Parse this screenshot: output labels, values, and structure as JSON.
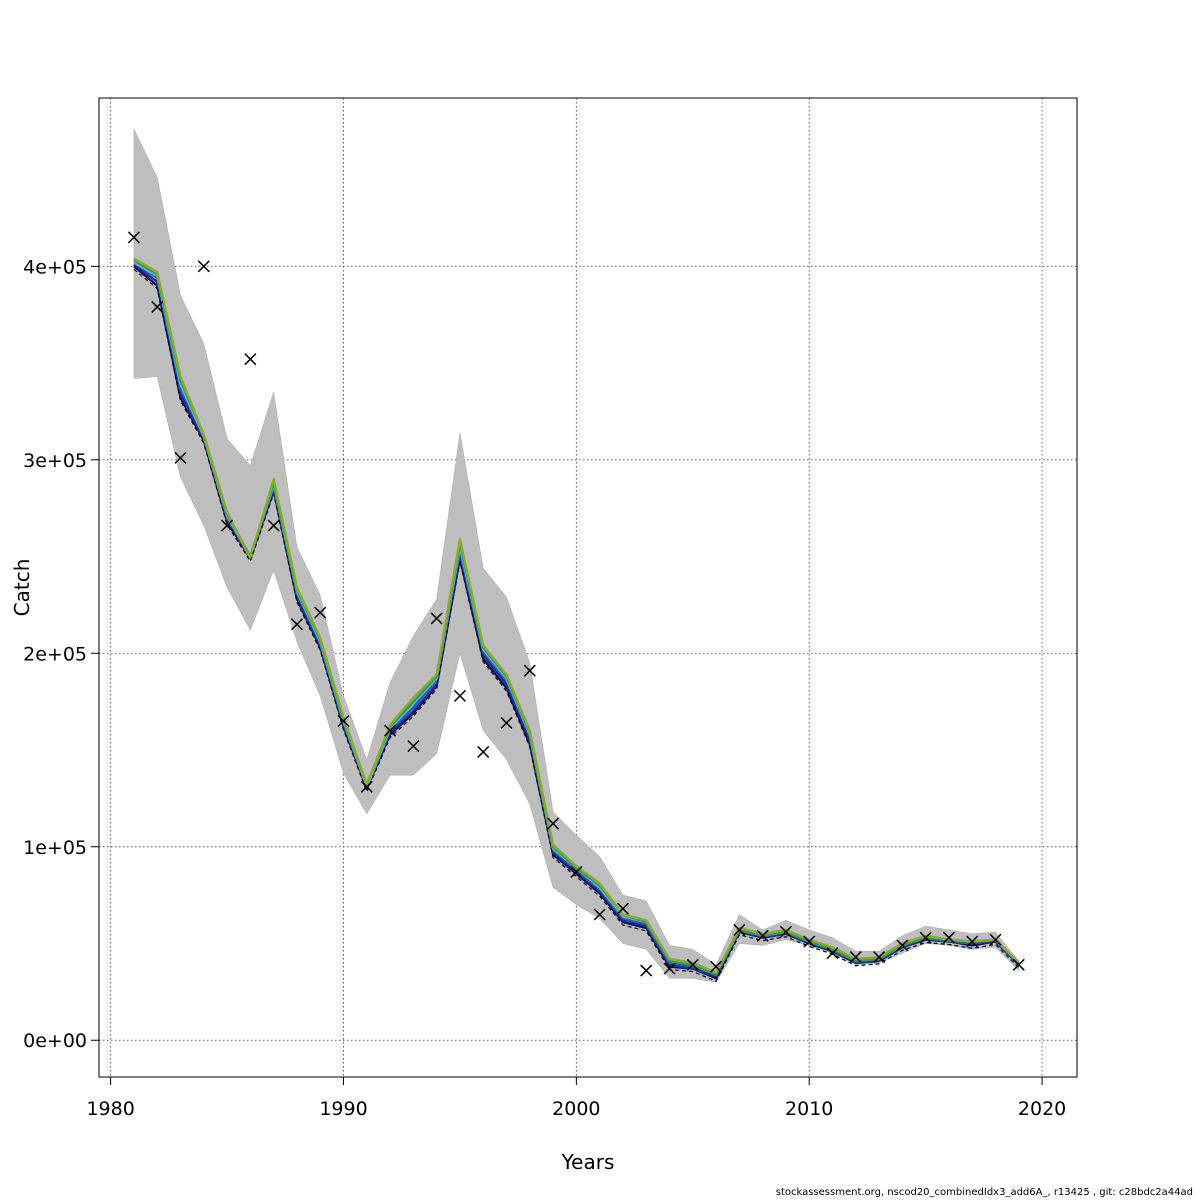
{
  "chart_data": {
    "type": "line",
    "title": "",
    "xlabel": "Years",
    "ylabel": "Catch",
    "xlim": [
      1979.5,
      2021.5
    ],
    "ylim": [
      -19000,
      487000
    ],
    "x_ticks": [
      1980,
      1990,
      2000,
      2010,
      2020
    ],
    "x_tick_labels": [
      "1980",
      "1990",
      "2000",
      "2010",
      "2020"
    ],
    "y_ticks": [
      0,
      100000,
      200000,
      300000,
      400000
    ],
    "y_tick_labels": [
      "0e+00",
      "1e+05",
      "2e+05",
      "3e+05",
      "4e+05"
    ],
    "grid": true,
    "legend": "none",
    "years": [
      1981,
      1982,
      1983,
      1984,
      1985,
      1986,
      1987,
      1988,
      1989,
      1990,
      1991,
      1992,
      1993,
      1994,
      1995,
      1996,
      1997,
      1998,
      1999,
      2000,
      2001,
      2002,
      2003,
      2004,
      2005,
      2006,
      2007,
      2008,
      2009,
      2010,
      2011,
      2012,
      2013,
      2014,
      2015,
      2016,
      2017,
      2018,
      2019
    ],
    "ci_upper": [
      471000,
      446000,
      385000,
      360000,
      311000,
      297000,
      335000,
      255000,
      230000,
      178000,
      145000,
      185000,
      209000,
      228000,
      314000,
      244000,
      229000,
      195000,
      118000,
      106000,
      95000,
      75000,
      72000,
      49000,
      47000,
      39000,
      65000,
      57000,
      62000,
      57000,
      53000,
      46000,
      46000,
      54000,
      59000,
      57000,
      55000,
      56000,
      41000
    ],
    "ci_lower": [
      342000,
      343000,
      291000,
      266000,
      234000,
      212000,
      243000,
      206000,
      178000,
      138000,
      117000,
      137000,
      137000,
      148000,
      200000,
      160000,
      145000,
      122000,
      79000,
      70000,
      63000,
      50000,
      47000,
      32000,
      32000,
      30000,
      50000,
      49000,
      52000,
      49000,
      45000,
      39000,
      40000,
      45000,
      50000,
      49000,
      47000,
      48000,
      36000
    ],
    "series": [
      {
        "color": "#0a0a55",
        "values": [
          400000,
          390000,
          332000,
          310000,
          268000,
          249000,
          284000,
          228000,
          203000,
          162000,
          130000,
          158000,
          169000,
          183000,
          249000,
          197000,
          182000,
          153000,
          96000,
          86000,
          76000,
          61000,
          58000,
          38000,
          37000,
          32000,
          56000,
          53000,
          55000,
          50000,
          46000,
          40000,
          41000,
          48000,
          52000,
          51000,
          49000,
          51000,
          39000
        ]
      },
      {
        "color": "#2a2a8c",
        "values": [
          401000,
          392000,
          334000,
          311000,
          269000,
          249000,
          285000,
          229000,
          204000,
          163000,
          130000,
          159000,
          170000,
          184000,
          251000,
          199000,
          184000,
          155000,
          97000,
          87000,
          77000,
          62000,
          59000,
          39000,
          37000,
          33000,
          56000,
          53000,
          55000,
          50000,
          46000,
          40000,
          41000,
          48000,
          52000,
          51000,
          50000,
          51000,
          39000
        ]
      },
      {
        "color": "#1f5fbf",
        "values": [
          402000,
          394000,
          337000,
          312000,
          270000,
          250000,
          286000,
          231000,
          205000,
          164000,
          131000,
          160000,
          172000,
          186000,
          253000,
          201000,
          186000,
          157000,
          98000,
          88000,
          78000,
          63000,
          60000,
          40000,
          38000,
          34000,
          57000,
          54000,
          56000,
          51000,
          47000,
          41000,
          42000,
          49000,
          53000,
          51000,
          50000,
          52000,
          39000
        ]
      },
      {
        "color": "#66b2d6",
        "values": [
          402000,
          395000,
          339000,
          312000,
          271000,
          250000,
          287000,
          232000,
          206000,
          165000,
          131000,
          161000,
          174000,
          187000,
          255000,
          202000,
          187000,
          158000,
          99000,
          89000,
          79000,
          64000,
          61000,
          41000,
          39000,
          34000,
          57000,
          54000,
          56000,
          51000,
          47000,
          41000,
          42000,
          49000,
          54000,
          52000,
          51000,
          52000,
          40000
        ]
      },
      {
        "color": "#2e9a6a",
        "values": [
          403000,
          396000,
          341000,
          313000,
          272000,
          250000,
          288000,
          233000,
          207000,
          166000,
          132000,
          162000,
          175000,
          188000,
          257000,
          203000,
          188000,
          159000,
          100000,
          89000,
          80000,
          65000,
          61000,
          41000,
          39000,
          34000,
          57000,
          54000,
          56000,
          51000,
          47000,
          41000,
          42000,
          49000,
          53000,
          52000,
          51000,
          52000,
          40000
        ]
      },
      {
        "color": "#8aac28",
        "values": [
          404000,
          397000,
          343000,
          313000,
          273000,
          249000,
          290000,
          234000,
          208000,
          167000,
          132000,
          163000,
          177000,
          189000,
          259000,
          204000,
          189000,
          160000,
          101000,
          90000,
          81000,
          65000,
          62000,
          42000,
          40000,
          35000,
          58000,
          55000,
          57000,
          52000,
          48000,
          42000,
          43000,
          50000,
          54000,
          52000,
          51000,
          52000,
          40000
        ]
      }
    ],
    "observed": {
      "marker": "x",
      "x": [
        1981,
        1982,
        1983,
        1984,
        1985,
        1986,
        1987,
        1988,
        1989,
        1990,
        1991,
        1992,
        1993,
        1994,
        1995,
        1996,
        1997,
        1998,
        1999,
        2000,
        2001,
        2002,
        2003,
        2004,
        2005,
        2006,
        2007,
        2008,
        2009,
        2010,
        2011,
        2012,
        2013,
        2014,
        2015,
        2016,
        2017,
        2018,
        2019
      ],
      "y": [
        415000,
        379000,
        301000,
        400000,
        266000,
        352000,
        266000,
        215000,
        221000,
        165000,
        131000,
        160000,
        152000,
        218000,
        178000,
        149000,
        164000,
        191000,
        112000,
        87000,
        65000,
        68000,
        36000,
        37000,
        39000,
        38000,
        57000,
        54000,
        56000,
        51000,
        45000,
        43000,
        43000,
        49000,
        53000,
        53000,
        51000,
        52000,
        39000
      ]
    }
  },
  "footer": {
    "note": "stockassessment.org, nscod20_combinedIdx3_add6A_, r13425 , git: c28bdc2a44ad"
  }
}
